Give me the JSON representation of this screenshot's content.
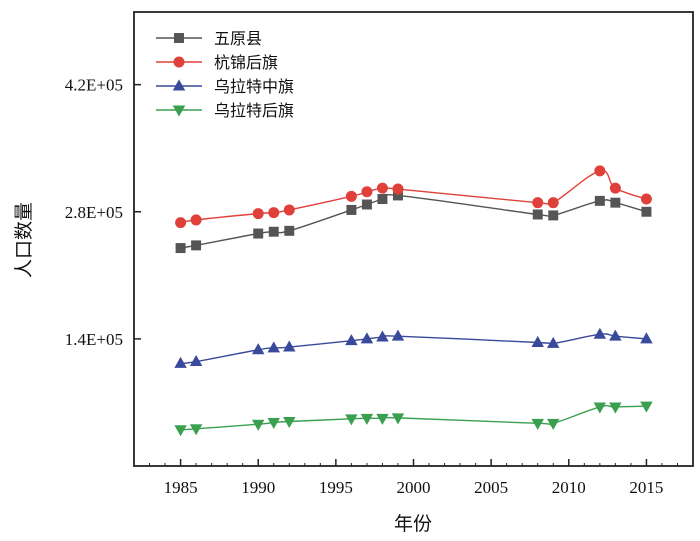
{
  "chart_data": {
    "type": "line",
    "xlabel": "年份",
    "ylabel": "人口数量",
    "xlim": [
      1982,
      2018
    ],
    "ylim": [
      0,
      500000
    ],
    "xticks": [
      1985,
      1990,
      1995,
      2000,
      2005,
      2010,
      2015
    ],
    "xtick_labels": [
      "1985",
      "1990",
      "1995",
      "2000",
      "2005",
      "2010",
      "2015"
    ],
    "yticks": [
      140000,
      280000,
      420000
    ],
    "ytick_labels": [
      "1.4E+05",
      "2.8E+05",
      "4.2E+05"
    ],
    "legend_position": "top-left",
    "grid": false,
    "series": [
      {
        "name": "五原县",
        "color": "#555555",
        "marker": "square",
        "x": [
          1985,
          1986,
          1990,
          1991,
          1992,
          1996,
          1997,
          1998,
          1999,
          2008,
          2009,
          2012,
          2013,
          2015
        ],
        "y": [
          240000,
          243000,
          256000,
          258000,
          259000,
          282000,
          288000,
          294000,
          298000,
          277000,
          276000,
          292000,
          290000,
          280000
        ]
      },
      {
        "name": "杭锦后旗",
        "color": "#e0403a",
        "marker": "circle",
        "x": [
          1985,
          1986,
          1990,
          1991,
          1992,
          1996,
          1997,
          1998,
          1999,
          2008,
          2009,
          2012,
          2013,
          2015
        ],
        "y": [
          268000,
          271000,
          278000,
          279000,
          282000,
          297000,
          302000,
          306000,
          305000,
          290000,
          290000,
          325000,
          306000,
          294000
        ]
      },
      {
        "name": "乌拉特中旗",
        "color": "#3a4a9a",
        "marker": "triangle-up",
        "x": [
          1985,
          1986,
          1990,
          1991,
          1992,
          1996,
          1997,
          1998,
          1999,
          2008,
          2009,
          2012,
          2013,
          2015
        ],
        "y": [
          113000,
          115000,
          128000,
          130000,
          131000,
          138000,
          140000,
          142000,
          143000,
          136000,
          135000,
          145000,
          143000,
          140000
        ]
      },
      {
        "name": "乌拉特后旗",
        "color": "#3aa050",
        "marker": "triangle-down",
        "x": [
          1985,
          1986,
          1990,
          1991,
          1992,
          1996,
          1997,
          1998,
          1999,
          2008,
          2009,
          2012,
          2013,
          2015
        ],
        "y": [
          40000,
          41000,
          46000,
          48000,
          49000,
          52000,
          52500,
          52500,
          53000,
          47000,
          47000,
          65000,
          65000,
          66000
        ]
      }
    ]
  }
}
